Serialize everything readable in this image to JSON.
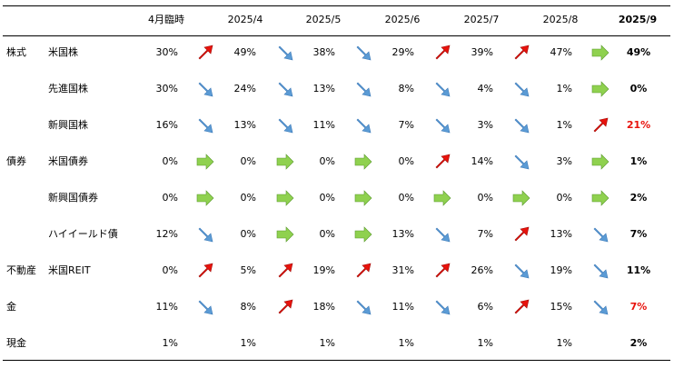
{
  "header": {
    "columns": [
      "4月臨時",
      "2025/4",
      "2025/5",
      "2025/6",
      "2025/7",
      "2025/8",
      "2025/9"
    ]
  },
  "colors": {
    "up": "#e8120c",
    "down": "#5b9bd5",
    "flat": "#8fd14f",
    "highlight_red": "#e8120c"
  },
  "rows": [
    {
      "category": "株式",
      "name": "米国株",
      "values": [
        "30%",
        "49%",
        "38%",
        "29%",
        "39%",
        "47%"
      ],
      "arrows": [
        "up",
        "down",
        "down",
        "up",
        "up",
        "flat"
      ],
      "final": "49%",
      "final_color": "black"
    },
    {
      "category": "",
      "name": "先進国株",
      "values": [
        "30%",
        "24%",
        "13%",
        "8%",
        "4%",
        "1%"
      ],
      "arrows": [
        "down",
        "down",
        "down",
        "down",
        "down",
        "flat"
      ],
      "final": "0%",
      "final_color": "black"
    },
    {
      "category": "",
      "name": "新興国株",
      "values": [
        "16%",
        "13%",
        "11%",
        "7%",
        "3%",
        "1%"
      ],
      "arrows": [
        "down",
        "down",
        "down",
        "down",
        "down",
        "up"
      ],
      "final": "21%",
      "final_color": "red"
    },
    {
      "category": "債券",
      "name": "米国債券",
      "values": [
        "0%",
        "0%",
        "0%",
        "0%",
        "14%",
        "3%"
      ],
      "arrows": [
        "flat",
        "flat",
        "flat",
        "up",
        "down",
        "flat"
      ],
      "final": "1%",
      "final_color": "black"
    },
    {
      "category": "",
      "name": "新興国債券",
      "values": [
        "0%",
        "0%",
        "0%",
        "0%",
        "0%",
        "0%"
      ],
      "arrows": [
        "flat",
        "flat",
        "flat",
        "flat",
        "flat",
        "flat"
      ],
      "final": "2%",
      "final_color": "black"
    },
    {
      "category": "",
      "name": "ハイイールド債",
      "values": [
        "12%",
        "0%",
        "0%",
        "13%",
        "7%",
        "13%"
      ],
      "arrows": [
        "down",
        "flat",
        "flat",
        "down",
        "up",
        "down"
      ],
      "final": "7%",
      "final_color": "black"
    },
    {
      "category": "不動産",
      "name": "米国REIT",
      "values": [
        "0%",
        "5%",
        "19%",
        "31%",
        "26%",
        "19%"
      ],
      "arrows": [
        "up",
        "up",
        "up",
        "up",
        "down",
        "down"
      ],
      "final": "11%",
      "final_color": "black"
    },
    {
      "category": "金",
      "name": "",
      "values": [
        "11%",
        "8%",
        "18%",
        "11%",
        "6%",
        "15%"
      ],
      "arrows": [
        "down",
        "up",
        "down",
        "down",
        "up",
        "down"
      ],
      "final": "7%",
      "final_color": "red"
    },
    {
      "category": "現金",
      "name": "",
      "values": [
        "1%",
        "1%",
        "1%",
        "1%",
        "1%",
        "1%"
      ],
      "arrows": [
        null,
        null,
        null,
        null,
        null,
        null
      ],
      "final": "2%",
      "final_color": "black"
    }
  ]
}
